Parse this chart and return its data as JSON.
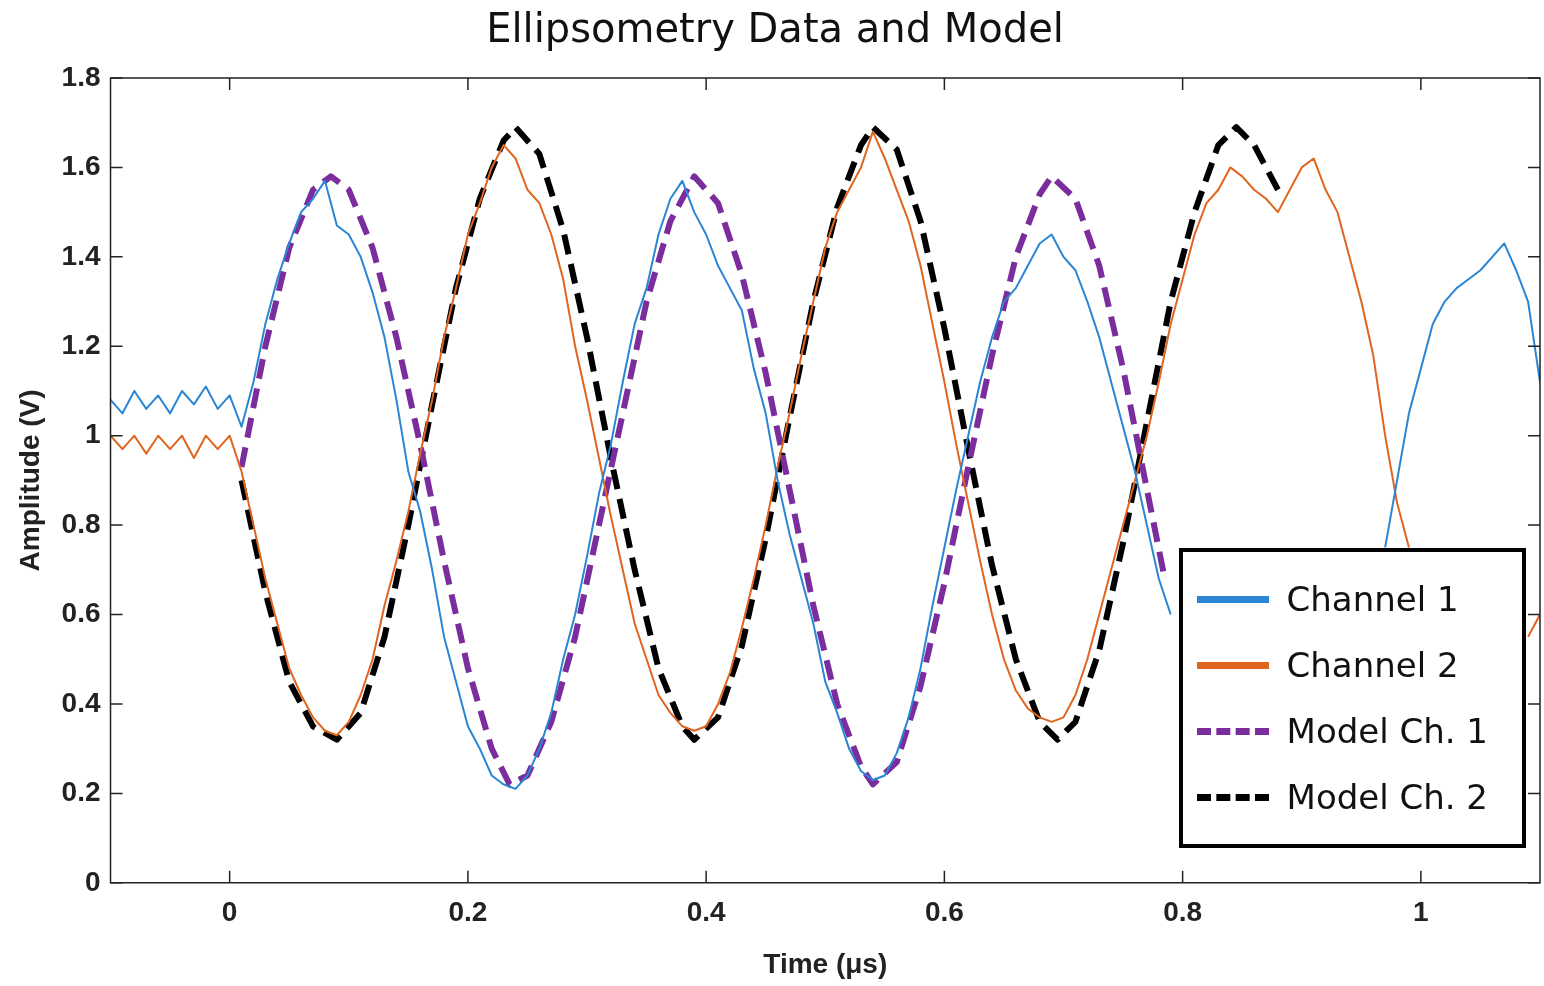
{
  "chart_data": {
    "type": "line",
    "title": "Ellipsometry Data and Model",
    "xlabel": "Time (μs)",
    "ylabel": "Amplitude (V)",
    "xlim": [
      -0.1,
      1.1
    ],
    "xticks": [
      0,
      0.2,
      0.4,
      0.6,
      0.8,
      1
    ],
    "ylim": [
      0,
      1.8
    ],
    "yticks": [
      0,
      0.2,
      0.4,
      0.6,
      0.8,
      1,
      1.2,
      1.4,
      1.6,
      1.8
    ],
    "grid": false,
    "legend": "bottom right",
    "marker": "none",
    "series": [
      {
        "name": "Channel 1",
        "color": "#2a86d4",
        "line_style": "solid",
        "x": [
          -0.1,
          -0.09,
          -0.08,
          -0.07,
          -0.06,
          -0.05,
          -0.04,
          -0.03,
          -0.02,
          -0.01,
          0,
          0.01,
          0.02,
          0.03,
          0.04,
          0.05,
          0.06,
          0.07,
          0.08,
          0.09,
          0.1,
          0.11,
          0.12,
          0.13,
          0.14,
          0.15,
          0.16,
          0.17,
          0.18,
          0.19,
          0.2,
          0.21,
          0.22,
          0.23,
          0.24,
          0.25,
          0.26,
          0.27,
          0.28,
          0.29,
          0.3,
          0.31,
          0.32,
          0.33,
          0.34,
          0.35,
          0.36,
          0.37,
          0.38,
          0.39,
          0.4,
          0.41,
          0.42,
          0.43,
          0.44,
          0.45,
          0.46,
          0.47,
          0.48,
          0.49,
          0.5,
          0.51,
          0.52,
          0.53,
          0.54,
          0.55,
          0.56,
          0.57,
          0.58,
          0.59,
          0.6,
          0.61,
          0.62,
          0.63,
          0.64,
          0.65,
          0.66,
          0.67,
          0.68,
          0.69,
          0.7,
          0.71,
          0.72,
          0.73,
          0.74,
          0.75,
          0.76,
          0.77,
          0.78,
          0.79,
          0.8,
          0.97,
          0.98,
          0.99,
          1,
          1.01,
          1.02,
          1.03,
          1.04,
          1.05,
          1.06,
          1.07,
          1.08,
          1.09,
          1.1
        ],
        "values": [
          1.08,
          1.05,
          1.1,
          1.06,
          1.09,
          1.05,
          1.1,
          1.07,
          1.11,
          1.06,
          1.09,
          1.02,
          1.12,
          1.25,
          1.35,
          1.43,
          1.5,
          1.53,
          1.57,
          1.47,
          1.45,
          1.4,
          1.32,
          1.22,
          1.08,
          0.92,
          0.83,
          0.7,
          0.55,
          0.45,
          0.35,
          0.3,
          0.24,
          0.22,
          0.21,
          0.24,
          0.3,
          0.38,
          0.5,
          0.6,
          0.73,
          0.87,
          0.98,
          1.12,
          1.25,
          1.33,
          1.45,
          1.53,
          1.57,
          1.5,
          1.45,
          1.38,
          1.33,
          1.28,
          1.15,
          1.05,
          0.9,
          0.78,
          0.68,
          0.58,
          0.45,
          0.38,
          0.3,
          0.25,
          0.23,
          0.24,
          0.29,
          0.37,
          0.48,
          0.62,
          0.75,
          0.88,
          1,
          1.12,
          1.22,
          1.3,
          1.33,
          1.38,
          1.43,
          1.45,
          1.4,
          1.37,
          1.3,
          1.22,
          1.12,
          1.02,
          0.92,
          0.8,
          0.68,
          0.6,
          null,
          0.75,
          0.9,
          1.05,
          1.15,
          1.25,
          1.3,
          1.33,
          1.35,
          1.37,
          1.4,
          1.43,
          1.37,
          1.3,
          1.12
        ]
      },
      {
        "name": "Channel 2",
        "color": "#e0651f",
        "line_style": "solid",
        "x": [
          -0.1,
          -0.09,
          -0.08,
          -0.07,
          -0.06,
          -0.05,
          -0.04,
          -0.03,
          -0.02,
          -0.01,
          0,
          0.01,
          0.02,
          0.03,
          0.04,
          0.05,
          0.06,
          0.07,
          0.08,
          0.09,
          0.1,
          0.11,
          0.12,
          0.13,
          0.14,
          0.15,
          0.16,
          0.17,
          0.18,
          0.19,
          0.2,
          0.21,
          0.22,
          0.23,
          0.24,
          0.25,
          0.26,
          0.27,
          0.28,
          0.29,
          0.3,
          0.31,
          0.32,
          0.33,
          0.34,
          0.35,
          0.36,
          0.37,
          0.38,
          0.39,
          0.4,
          0.41,
          0.42,
          0.43,
          0.44,
          0.45,
          0.46,
          0.47,
          0.48,
          0.49,
          0.5,
          0.51,
          0.52,
          0.53,
          0.54,
          0.55,
          0.56,
          0.57,
          0.58,
          0.59,
          0.6,
          0.61,
          0.62,
          0.63,
          0.64,
          0.65,
          0.66,
          0.67,
          0.68,
          0.69,
          0.7,
          0.71,
          0.72,
          0.73,
          0.74,
          0.75,
          0.76,
          0.77,
          0.78,
          0.79,
          0.8,
          0.81,
          0.82,
          0.83,
          0.84,
          0.85,
          0.86,
          0.87,
          0.88,
          0.89,
          0.9,
          0.91,
          0.92,
          0.93,
          0.94,
          0.95,
          0.96,
          0.97,
          0.98,
          0.99,
          1.0,
          1.09,
          1.1
        ],
        "values": [
          1,
          0.97,
          1,
          0.96,
          1,
          0.97,
          1,
          0.95,
          1,
          0.97,
          1,
          0.92,
          0.8,
          0.68,
          0.58,
          0.48,
          0.42,
          0.37,
          0.34,
          0.33,
          0.36,
          0.42,
          0.5,
          0.62,
          0.72,
          0.83,
          0.96,
          1.08,
          1.22,
          1.33,
          1.45,
          1.52,
          1.6,
          1.65,
          1.62,
          1.55,
          1.52,
          1.45,
          1.35,
          1.2,
          1.08,
          0.95,
          0.82,
          0.7,
          0.58,
          0.5,
          0.42,
          0.38,
          0.35,
          0.34,
          0.35,
          0.4,
          0.47,
          0.57,
          0.68,
          0.8,
          0.93,
          1.05,
          1.18,
          1.3,
          1.42,
          1.5,
          1.55,
          1.6,
          1.68,
          1.62,
          1.55,
          1.48,
          1.38,
          1.25,
          1.12,
          0.98,
          0.85,
          0.72,
          0.6,
          0.5,
          0.43,
          0.39,
          0.37,
          0.36,
          0.37,
          0.42,
          0.5,
          0.6,
          0.7,
          0.8,
          0.9,
          1,
          1.12,
          1.25,
          1.35,
          1.45,
          1.52,
          1.55,
          1.6,
          1.58,
          1.55,
          1.53,
          1.5,
          1.55,
          1.6,
          1.62,
          1.55,
          1.5,
          1.4,
          1.3,
          1.18,
          1,
          0.85,
          0.75,
          null,
          0.55,
          0.6
        ]
      },
      {
        "name": "Model Ch. 1",
        "color": "#7b2d9e",
        "line_style": "dashed",
        "x": [
          0.01,
          0.03,
          0.05,
          0.07,
          0.085,
          0.1,
          0.12,
          0.14,
          0.16,
          0.18,
          0.2,
          0.22,
          0.235,
          0.25,
          0.27,
          0.29,
          0.31,
          0.33,
          0.35,
          0.37,
          0.39,
          0.41,
          0.43,
          0.45,
          0.47,
          0.49,
          0.51,
          0.53,
          0.54,
          0.56,
          0.58,
          0.6,
          0.62,
          0.64,
          0.66,
          0.68,
          0.69,
          0.71,
          0.73,
          0.75,
          0.77,
          0.785
        ],
        "values": [
          0.93,
          1.2,
          1.42,
          1.55,
          1.58,
          1.55,
          1.42,
          1.22,
          0.98,
          0.72,
          0.48,
          0.3,
          0.22,
          0.24,
          0.36,
          0.55,
          0.8,
          1.05,
          1.3,
          1.48,
          1.58,
          1.52,
          1.36,
          1.14,
          0.88,
          0.62,
          0.4,
          0.26,
          0.22,
          0.27,
          0.44,
          0.67,
          0.93,
          1.18,
          1.4,
          1.54,
          1.58,
          1.53,
          1.38,
          1.15,
          0.88,
          0.68
        ]
      },
      {
        "name": "Model Ch. 2",
        "color": "#000000",
        "line_style": "dashed",
        "x": [
          0.01,
          0.03,
          0.05,
          0.07,
          0.09,
          0.11,
          0.13,
          0.15,
          0.17,
          0.19,
          0.21,
          0.23,
          0.24,
          0.26,
          0.28,
          0.3,
          0.32,
          0.34,
          0.36,
          0.38,
          0.39,
          0.41,
          0.43,
          0.45,
          0.47,
          0.49,
          0.51,
          0.53,
          0.54,
          0.56,
          0.58,
          0.6,
          0.62,
          0.64,
          0.66,
          0.68,
          0.695,
          0.71,
          0.73,
          0.75,
          0.77,
          0.79,
          0.81,
          0.83,
          0.845,
          0.86,
          0.88
        ],
        "values": [
          0.9,
          0.65,
          0.45,
          0.35,
          0.32,
          0.38,
          0.55,
          0.8,
          1.07,
          1.33,
          1.53,
          1.66,
          1.69,
          1.63,
          1.46,
          1.22,
          0.95,
          0.7,
          0.48,
          0.35,
          0.32,
          0.37,
          0.53,
          0.77,
          1.04,
          1.3,
          1.51,
          1.65,
          1.69,
          1.64,
          1.48,
          1.24,
          0.97,
          0.71,
          0.5,
          0.36,
          0.32,
          0.36,
          0.52,
          0.76,
          1.03,
          1.3,
          1.5,
          1.65,
          1.69,
          1.65,
          1.55
        ]
      }
    ]
  }
}
